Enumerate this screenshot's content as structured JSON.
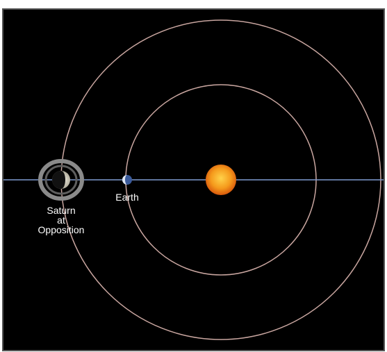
{
  "labels": {
    "saturn": [
      "Saturn",
      "at",
      "Opposition"
    ],
    "earth": "Earth"
  }
}
